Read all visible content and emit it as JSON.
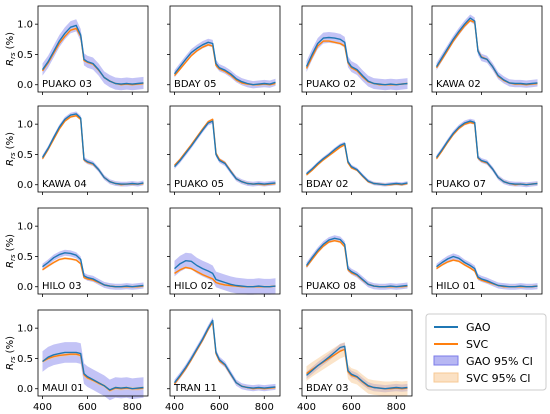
{
  "chart_data": {
    "type": "line",
    "ylabel": "R_rs (%)",
    "xlim": [
      380,
      870
    ],
    "ylim": [
      -0.12,
      1.3
    ],
    "x_ticks": [
      400,
      600,
      800
    ],
    "y_ticks": [
      0.0,
      0.5,
      1.0
    ],
    "y_tick_labels": [
      "0.0",
      "0.5",
      "1.0"
    ],
    "colors": {
      "gao": "#1f77b4",
      "svc": "#ff7f0e",
      "gao_ci": "#7b7bea",
      "svc_ci": "#f7c994"
    },
    "legend": {
      "placement": "bottom-right",
      "entries": [
        "GAO",
        "SVC",
        "GAO 95% CI",
        "SVC 95% CI"
      ]
    },
    "wavelengths": [
      400,
      425,
      450,
      475,
      500,
      525,
      550,
      570,
      585,
      600,
      625,
      650,
      675,
      700,
      725,
      750,
      775,
      800,
      825,
      850
    ],
    "panels": [
      {
        "label": "PUAKO 03",
        "gao": [
          0.25,
          0.38,
          0.55,
          0.72,
          0.85,
          0.95,
          0.98,
          0.82,
          0.42,
          0.38,
          0.35,
          0.25,
          0.12,
          0.06,
          0.02,
          0.01,
          0.02,
          0.01,
          0.02,
          0.03
        ],
        "svc": [
          0.23,
          0.36,
          0.52,
          0.68,
          0.8,
          0.9,
          0.93,
          0.8,
          0.4,
          0.37,
          0.34,
          0.24,
          0.12,
          0.06,
          0.02,
          0.0,
          0.01,
          0.0,
          0.01,
          0.02
        ],
        "gao_ci": 0.1,
        "svc_ci": 0.02
      },
      {
        "label": "BDAY 05",
        "gao": [
          0.18,
          0.3,
          0.42,
          0.53,
          0.6,
          0.66,
          0.7,
          0.68,
          0.35,
          0.28,
          0.24,
          0.18,
          0.1,
          0.05,
          0.02,
          0.0,
          0.01,
          0.02,
          0.01,
          0.04
        ],
        "svc": [
          0.15,
          0.26,
          0.37,
          0.48,
          0.56,
          0.62,
          0.66,
          0.64,
          0.32,
          0.26,
          0.22,
          0.16,
          0.08,
          0.03,
          0.01,
          0.0,
          0.0,
          0.01,
          0.0,
          0.02
        ],
        "gao_ci": 0.06,
        "svc_ci": 0.02
      },
      {
        "label": "PUAKO 02",
        "gao": [
          0.3,
          0.5,
          0.68,
          0.77,
          0.78,
          0.77,
          0.75,
          0.7,
          0.38,
          0.3,
          0.25,
          0.15,
          0.06,
          0.02,
          0.01,
          0.0,
          0.01,
          0.0,
          0.01,
          0.02
        ],
        "svc": [
          0.27,
          0.46,
          0.64,
          0.72,
          0.72,
          0.7,
          0.68,
          0.64,
          0.36,
          0.28,
          0.23,
          0.13,
          0.05,
          0.02,
          0.0,
          0.0,
          0.0,
          0.0,
          0.01,
          0.02
        ],
        "gao_ci": 0.09,
        "svc_ci": 0.02
      },
      {
        "label": "KAWA 02",
        "gao": [
          0.3,
          0.45,
          0.6,
          0.75,
          0.88,
          1.0,
          1.1,
          1.05,
          0.55,
          0.45,
          0.42,
          0.3,
          0.15,
          0.08,
          0.03,
          0.02,
          0.02,
          0.01,
          0.02,
          0.03
        ],
        "svc": [
          0.28,
          0.42,
          0.57,
          0.72,
          0.85,
          0.97,
          1.06,
          1.03,
          0.56,
          0.46,
          0.42,
          0.3,
          0.14,
          0.07,
          0.03,
          0.01,
          0.01,
          0.0,
          0.01,
          0.02
        ],
        "gao_ci": 0.06,
        "svc_ci": 0.02
      },
      {
        "label": "KAWA 04",
        "gao": [
          0.45,
          0.6,
          0.78,
          0.95,
          1.08,
          1.15,
          1.17,
          1.1,
          0.42,
          0.38,
          0.35,
          0.25,
          0.12,
          0.05,
          0.02,
          0.01,
          0.01,
          0.02,
          0.01,
          0.03
        ],
        "svc": [
          0.43,
          0.58,
          0.75,
          0.92,
          1.05,
          1.12,
          1.14,
          1.08,
          0.41,
          0.37,
          0.34,
          0.25,
          0.12,
          0.05,
          0.02,
          0.0,
          0.01,
          0.01,
          0.01,
          0.02
        ],
        "gao_ci": 0.04,
        "svc_ci": 0.02
      },
      {
        "label": "PUAKO 05",
        "gao": [
          0.3,
          0.4,
          0.52,
          0.64,
          0.77,
          0.9,
          1.02,
          1.05,
          0.5,
          0.4,
          0.35,
          0.22,
          0.1,
          0.05,
          0.02,
          0.01,
          0.02,
          0.01,
          0.02,
          0.03
        ],
        "svc": [
          0.32,
          0.42,
          0.54,
          0.66,
          0.79,
          0.92,
          1.04,
          1.08,
          0.52,
          0.42,
          0.36,
          0.23,
          0.1,
          0.05,
          0.02,
          0.01,
          0.01,
          0.0,
          0.01,
          0.02
        ],
        "gao_ci": 0.04,
        "svc_ci": 0.02
      },
      {
        "label": "BDAY 02",
        "gao": [
          0.18,
          0.26,
          0.35,
          0.43,
          0.5,
          0.58,
          0.65,
          0.68,
          0.38,
          0.3,
          0.25,
          0.15,
          0.06,
          0.02,
          0.01,
          0.0,
          0.01,
          0.02,
          0.01,
          0.03
        ],
        "svc": [
          0.16,
          0.24,
          0.33,
          0.41,
          0.48,
          0.55,
          0.62,
          0.66,
          0.36,
          0.28,
          0.24,
          0.14,
          0.05,
          0.02,
          0.01,
          0.0,
          0.0,
          0.01,
          0.0,
          0.02
        ],
        "gao_ci": 0.03,
        "svc_ci": 0.02
      },
      {
        "label": "PUAKO 07",
        "gao": [
          0.45,
          0.58,
          0.72,
          0.85,
          0.95,
          1.02,
          1.05,
          1.03,
          0.45,
          0.4,
          0.37,
          0.26,
          0.12,
          0.05,
          0.02,
          0.01,
          0.01,
          0.0,
          0.01,
          0.02
        ],
        "svc": [
          0.43,
          0.56,
          0.7,
          0.83,
          0.93,
          1.0,
          1.03,
          1.01,
          0.44,
          0.39,
          0.36,
          0.26,
          0.12,
          0.05,
          0.02,
          0.0,
          0.01,
          0.0,
          0.01,
          0.02
        ],
        "gao_ci": 0.04,
        "svc_ci": 0.02
      },
      {
        "label": "HILO 03",
        "gao": [
          0.33,
          0.4,
          0.48,
          0.53,
          0.56,
          0.55,
          0.52,
          0.45,
          0.18,
          0.15,
          0.13,
          0.08,
          0.03,
          0.01,
          0.0,
          0.0,
          0.01,
          0.0,
          0.01,
          0.02
        ],
        "svc": [
          0.28,
          0.34,
          0.4,
          0.45,
          0.47,
          0.46,
          0.44,
          0.38,
          0.15,
          0.13,
          0.11,
          0.07,
          0.03,
          0.01,
          0.0,
          0.0,
          0.0,
          0.0,
          0.0,
          0.01
        ],
        "gao_ci": 0.05,
        "svc_ci": 0.02
      },
      {
        "label": "HILO 02",
        "gao": [
          0.3,
          0.38,
          0.43,
          0.42,
          0.35,
          0.3,
          0.26,
          0.22,
          0.12,
          0.1,
          0.07,
          0.04,
          0.02,
          0.01,
          0.0,
          0.0,
          0.01,
          0.0,
          0.0,
          0.01
        ],
        "svc": [
          0.22,
          0.28,
          0.32,
          0.3,
          0.25,
          0.2,
          0.16,
          0.13,
          0.07,
          0.05,
          0.03,
          0.02,
          0.01,
          0.0,
          0.0,
          0.0,
          0.0,
          0.0,
          0.0,
          0.01
        ],
        "gao_ci": 0.13,
        "svc_ci": 0.02
      },
      {
        "label": "PUAKO 08",
        "gao": [
          0.35,
          0.48,
          0.6,
          0.7,
          0.77,
          0.8,
          0.78,
          0.7,
          0.3,
          0.25,
          0.2,
          0.12,
          0.04,
          0.01,
          0.0,
          0.0,
          0.01,
          0.0,
          0.01,
          0.02
        ],
        "svc": [
          0.33,
          0.45,
          0.57,
          0.67,
          0.74,
          0.76,
          0.74,
          0.66,
          0.28,
          0.23,
          0.19,
          0.11,
          0.04,
          0.01,
          0.0,
          0.0,
          0.0,
          0.0,
          0.0,
          0.01
        ],
        "gao_ci": 0.05,
        "svc_ci": 0.02
      },
      {
        "label": "HILO 01",
        "gao": [
          0.33,
          0.4,
          0.46,
          0.5,
          0.47,
          0.4,
          0.35,
          0.3,
          0.16,
          0.13,
          0.1,
          0.06,
          0.02,
          0.01,
          0.0,
          0.0,
          0.01,
          0.0,
          0.0,
          0.01
        ],
        "svc": [
          0.3,
          0.36,
          0.41,
          0.44,
          0.42,
          0.36,
          0.31,
          0.26,
          0.14,
          0.11,
          0.08,
          0.05,
          0.02,
          0.0,
          0.0,
          0.0,
          0.0,
          0.0,
          0.0,
          0.01
        ],
        "gao_ci": 0.05,
        "svc_ci": 0.02
      },
      {
        "label": "MAUI 01",
        "gao": [
          0.45,
          0.52,
          0.56,
          0.58,
          0.6,
          0.6,
          0.6,
          0.58,
          0.25,
          0.2,
          0.15,
          0.1,
          0.05,
          -0.02,
          0.02,
          0.01,
          0.02,
          0.0,
          0.01,
          0.02
        ],
        "svc": [
          0.45,
          0.5,
          0.53,
          0.55,
          0.56,
          0.57,
          0.57,
          0.55,
          0.23,
          0.18,
          0.14,
          0.09,
          0.05,
          -0.03,
          0.01,
          0.0,
          0.01,
          0.0,
          0.0,
          0.01
        ],
        "gao_ci": 0.17,
        "svc_ci": 0.03
      },
      {
        "label": "TRAN 11",
        "gao": [
          0.1,
          0.22,
          0.35,
          0.5,
          0.66,
          0.82,
          1.0,
          1.13,
          0.6,
          0.48,
          0.4,
          0.25,
          0.1,
          0.04,
          0.02,
          0.01,
          0.02,
          0.01,
          0.02,
          0.03
        ],
        "svc": [
          0.08,
          0.2,
          0.33,
          0.48,
          0.64,
          0.8,
          0.98,
          1.1,
          0.58,
          0.46,
          0.39,
          0.24,
          0.1,
          0.04,
          0.02,
          0.0,
          0.01,
          0.0,
          0.01,
          0.02
        ],
        "gao_ci": 0.05,
        "svc_ci": 0.02
      },
      {
        "label": "BDAY 03",
        "gao": [
          0.22,
          0.3,
          0.38,
          0.45,
          0.52,
          0.6,
          0.68,
          0.7,
          0.3,
          0.24,
          0.2,
          0.12,
          0.05,
          0.02,
          0.01,
          0.0,
          0.01,
          0.02,
          0.01,
          0.02
        ],
        "svc": [
          0.25,
          0.32,
          0.38,
          0.44,
          0.5,
          0.56,
          0.62,
          0.65,
          0.28,
          0.22,
          0.19,
          0.11,
          0.04,
          0.02,
          0.01,
          0.0,
          0.0,
          0.01,
          0.0,
          0.01
        ],
        "gao_ci": 0.06,
        "svc_ci": 0.12
      }
    ]
  }
}
